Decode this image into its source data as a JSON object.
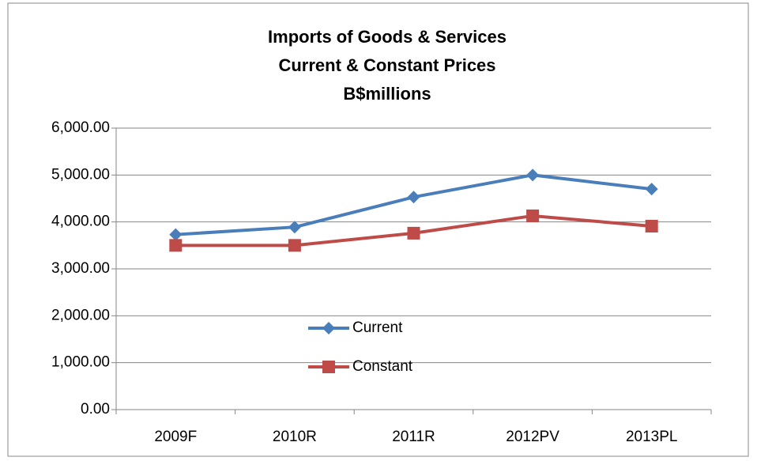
{
  "chart_data": {
    "type": "line",
    "title": [
      "Imports of Goods & Services",
      "Current & Constant Prices",
      "B$millions"
    ],
    "categories": [
      "2009F",
      "2010R",
      "2011R",
      "2012PV",
      "2013PL"
    ],
    "series": [
      {
        "name": "Current",
        "color": "#4a7ebb",
        "marker": "diamond",
        "values": [
          3730,
          3890,
          4530,
          5000,
          4700
        ]
      },
      {
        "name": "Constant",
        "color": "#be4b48",
        "marker": "square",
        "values": [
          3500,
          3500,
          3760,
          4130,
          3910
        ]
      }
    ],
    "ylim": [
      0,
      6000
    ],
    "yticks": [
      {
        "value": 0,
        "label": "0.00"
      },
      {
        "value": 1000,
        "label": "1,000.00"
      },
      {
        "value": 2000,
        "label": "2,000.00"
      },
      {
        "value": 3000,
        "label": "3,000.00"
      },
      {
        "value": 4000,
        "label": "4,000.00"
      },
      {
        "value": 5000,
        "label": "5,000.00"
      },
      {
        "value": 6000,
        "label": "6,000.00"
      }
    ],
    "grid": true,
    "legend": "center"
  }
}
